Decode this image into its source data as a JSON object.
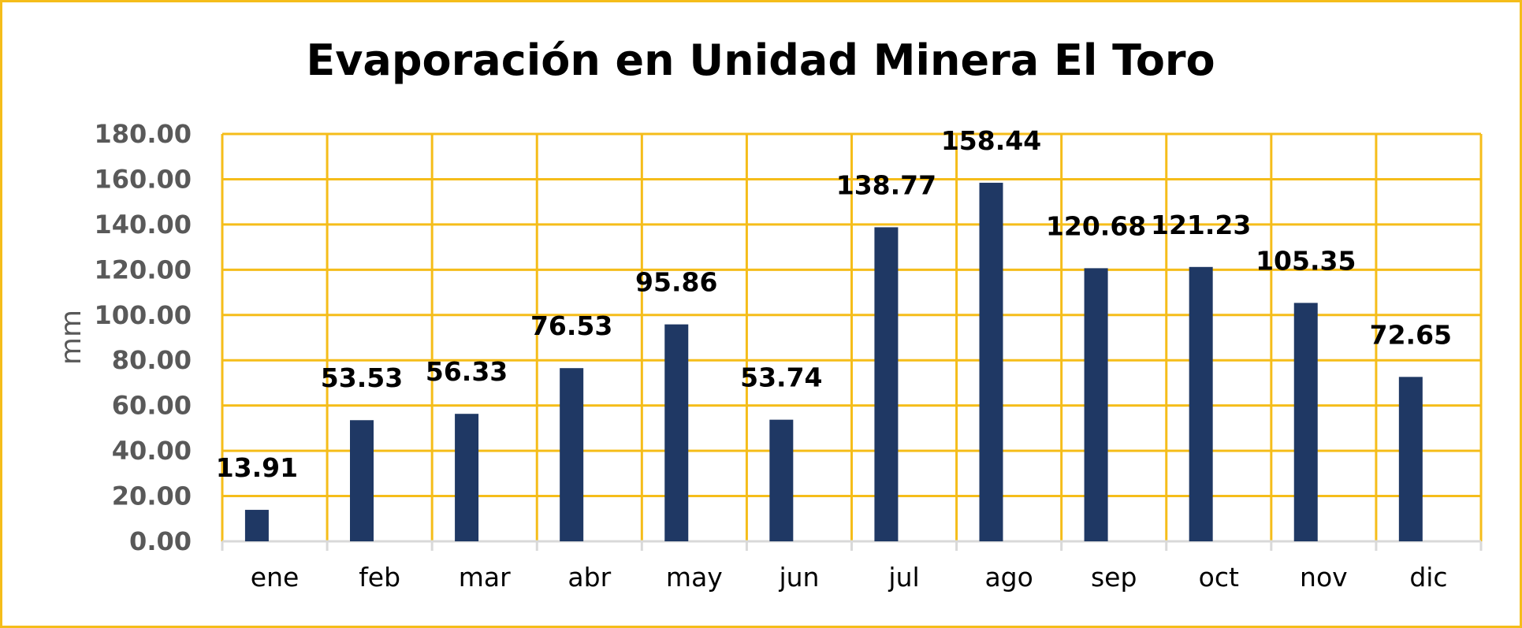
{
  "chart_data": {
    "type": "bar",
    "title": "Evaporación en Unidad Minera El Toro",
    "xlabel": "",
    "ylabel": "mm",
    "ylim": [
      0,
      180
    ],
    "yticks": [
      "0.00",
      "20.00",
      "40.00",
      "60.00",
      "80.00",
      "100.00",
      "120.00",
      "140.00",
      "160.00",
      "180.00"
    ],
    "categories": [
      "ene",
      "feb",
      "mar",
      "abr",
      "may",
      "jun",
      "jul",
      "ago",
      "sep",
      "oct",
      "nov",
      "dic"
    ],
    "series": [
      {
        "values": [
          13.91,
          53.53,
          56.33,
          76.53,
          95.86,
          53.74,
          138.77,
          158.44,
          120.68,
          121.23,
          105.35,
          72.65
        ],
        "labels": [
          "13.91",
          "53.53",
          "56.33",
          "76.53",
          "95.86",
          "53.74",
          "138.77",
          "158.44",
          "120.68",
          "121.23",
          "105.35",
          "72.65"
        ],
        "color": "#1f3864"
      }
    ],
    "grid": true,
    "legend": "none",
    "colors": {
      "gridlines": "#f5bd1a",
      "border": "#f5bd1a",
      "bars": "#1f3864",
      "axis_text": "#595959"
    }
  }
}
